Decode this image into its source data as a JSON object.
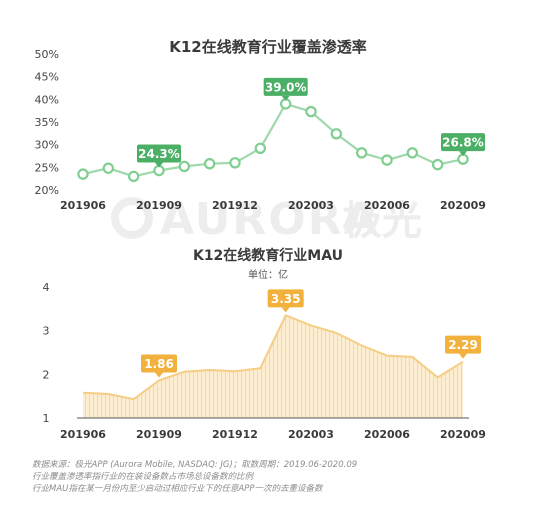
{
  "watermark": {
    "brand": "AURORA",
    "cn": "极光"
  },
  "chart_data": [
    {
      "type": "line",
      "title": "K12在线教育行业覆盖渗透率",
      "x": [
        "201906",
        "201907",
        "201908",
        "201909",
        "201910",
        "201911",
        "201912",
        "202001",
        "202002",
        "202003",
        "202004",
        "202005",
        "202006",
        "202007",
        "202008",
        "202009"
      ],
      "tick_labels": [
        "201906",
        "201909",
        "201912",
        "202003",
        "202006",
        "202009"
      ],
      "y_ticks": [
        "20%",
        "25%",
        "30%",
        "35%",
        "40%",
        "45%",
        "50%"
      ],
      "ylim": [
        20,
        50
      ],
      "series": [
        {
          "values": [
            23.5,
            24.8,
            23.0,
            24.3,
            25.2,
            25.8,
            26.0,
            29.2,
            39.0,
            37.3,
            32.4,
            28.2,
            26.6,
            28.2,
            25.6,
            26.8
          ]
        }
      ],
      "callouts": [
        {
          "index": 3,
          "text": "24.3%"
        },
        {
          "index": 8,
          "text": "39.0%"
        },
        {
          "index": 15,
          "text": "26.8%"
        }
      ],
      "grid": false,
      "colors": {
        "line": "#9fd8ab",
        "marker": "#7fcf92",
        "callout": "#4caf66"
      }
    },
    {
      "type": "area",
      "title": "K12在线教育行业MAU",
      "subtitle": "单位：亿",
      "x": [
        "201906",
        "201907",
        "201908",
        "201909",
        "201910",
        "201911",
        "201912",
        "202001",
        "202002",
        "202003",
        "202004",
        "202005",
        "202006",
        "202007",
        "202008",
        "202009"
      ],
      "tick_labels": [
        "201906",
        "201909",
        "201912",
        "202003",
        "202006",
        "202009"
      ],
      "y_ticks": [
        "1",
        "2",
        "3",
        "4"
      ],
      "ylim": [
        1,
        4
      ],
      "series": [
        {
          "values": [
            1.58,
            1.55,
            1.43,
            1.86,
            2.06,
            2.1,
            2.07,
            2.14,
            3.35,
            3.12,
            2.95,
            2.66,
            2.43,
            2.4,
            1.93,
            2.29
          ]
        }
      ],
      "callouts": [
        {
          "index": 3,
          "text": "1.86"
        },
        {
          "index": 8,
          "text": "3.35"
        },
        {
          "index": 15,
          "text": "2.29"
        }
      ],
      "grid": false,
      "colors": {
        "line": "#f6cd83",
        "fill": "#fdeed2",
        "hatch": "#f7d79f",
        "callout": "#f2b13c"
      }
    }
  ],
  "footnotes": [
    "数据来源：极光APP (Aurora Mobile, NASDAQ: JG)；取数周期：2019.06-2020.09",
    "行业覆盖渗透率指行业的在装设备数占市场总设备数的比例",
    "行业MAU指在某一月份内至少启动过相应行业下的任意APP一次的去重设备数"
  ]
}
